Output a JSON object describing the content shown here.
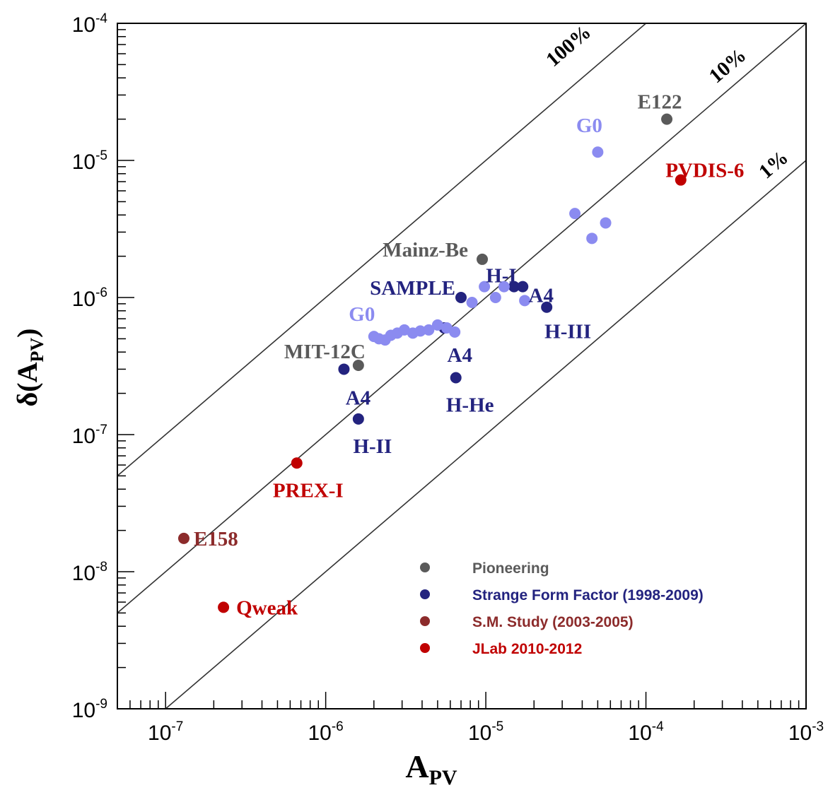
{
  "chart_data": {
    "type": "scatter",
    "xlabel": "A",
    "xlabel_sub": "PV",
    "ylabel": "δ(A",
    "ylabel_sub": "PV",
    "ylabel_close": ")",
    "x_scale": "log",
    "y_scale": "log",
    "xlim": [
      5e-08,
      0.001
    ],
    "ylim": [
      1e-09,
      0.0001
    ],
    "x_ticks": [
      {
        "base": "10",
        "exp": "-7",
        "value": 1e-07
      },
      {
        "base": "10",
        "exp": "-6",
        "value": 1e-06
      },
      {
        "base": "10",
        "exp": "-5",
        "value": 1e-05
      },
      {
        "base": "10",
        "exp": "-4",
        "value": 0.0001
      },
      {
        "base": "10",
        "exp": "-3",
        "value": 0.001
      }
    ],
    "y_ticks": [
      {
        "base": "10",
        "exp": "-9",
        "value": 1e-09
      },
      {
        "base": "10",
        "exp": "-8",
        "value": 1e-08
      },
      {
        "base": "10",
        "exp": "-7",
        "value": 1e-07
      },
      {
        "base": "10",
        "exp": "-6",
        "value": 1e-06
      },
      {
        "base": "10",
        "exp": "-5",
        "value": 1e-05
      },
      {
        "base": "10",
        "exp": "-4",
        "value": 0.0001
      }
    ],
    "grid": false,
    "legend_position": "bottom-right",
    "reference_lines": [
      {
        "label": "100%",
        "ratio": 1.0
      },
      {
        "label": "10%",
        "ratio": 0.1
      },
      {
        "label": "1%",
        "ratio": 0.01
      }
    ],
    "series": [
      {
        "name": "Pioneering",
        "color": "#5a5a5a",
        "points": [
          {
            "x": 0.000135,
            "y": 2e-05,
            "label": "E122"
          },
          {
            "x": 9.5e-06,
            "y": 1.9e-06,
            "label": "Mainz-Be"
          },
          {
            "x": 1.6e-06,
            "y": 3.2e-07,
            "label": "MIT-12C"
          }
        ]
      },
      {
        "name": "Strange Form Factor (1998-2009)",
        "color": "#23237f",
        "points": [
          {
            "x": 7e-06,
            "y": 1e-06,
            "label": "SAMPLE"
          },
          {
            "x": 1.5e-05,
            "y": 1.2e-06,
            "label": "H-I"
          },
          {
            "x": 1.7e-05,
            "y": 1.2e-06,
            "label": "A4"
          },
          {
            "x": 2.4e-05,
            "y": 8.5e-07,
            "label": "H-III"
          },
          {
            "x": 5.5e-06,
            "y": 6e-07,
            "label": "A4"
          },
          {
            "x": 1.3e-06,
            "y": 3e-07,
            "label": "A4"
          },
          {
            "x": 6.5e-06,
            "y": 2.6e-07,
            "label": "H-He"
          },
          {
            "x": 1.6e-06,
            "y": 1.3e-07,
            "label": "H-II"
          }
        ]
      },
      {
        "name": "G0",
        "color": "#8b8bf0",
        "points": [
          {
            "x": 5e-05,
            "y": 1.15e-05,
            "label": "G0"
          },
          {
            "x": 3.6e-05,
            "y": 4.1e-06
          },
          {
            "x": 5.6e-05,
            "y": 3.5e-06
          },
          {
            "x": 4.6e-05,
            "y": 2.7e-06
          },
          {
            "x": 9.8e-06,
            "y": 1.2e-06
          },
          {
            "x": 1.3e-05,
            "y": 1.2e-06
          },
          {
            "x": 1.15e-05,
            "y": 1e-06
          },
          {
            "x": 1.75e-05,
            "y": 9.5e-07
          },
          {
            "x": 8.2e-06,
            "y": 9.2e-07
          },
          {
            "x": 2e-06,
            "y": 5.2e-07,
            "label": "G0"
          },
          {
            "x": 2.15e-06,
            "y": 5e-07
          },
          {
            "x": 2.35e-06,
            "y": 4.9e-07
          },
          {
            "x": 2.55e-06,
            "y": 5.3e-07
          },
          {
            "x": 2.8e-06,
            "y": 5.5e-07
          },
          {
            "x": 3.1e-06,
            "y": 5.8e-07
          },
          {
            "x": 3.5e-06,
            "y": 5.5e-07
          },
          {
            "x": 3.9e-06,
            "y": 5.7e-07
          },
          {
            "x": 4.4e-06,
            "y": 5.8e-07
          },
          {
            "x": 5e-06,
            "y": 6.3e-07
          },
          {
            "x": 5.7e-06,
            "y": 6e-07
          },
          {
            "x": 6.4e-06,
            "y": 5.6e-07
          }
        ]
      },
      {
        "name": "S.M. Study (2003-2005)",
        "color": "#8c2b2b",
        "points": [
          {
            "x": 1.3e-07,
            "y": 1.75e-08,
            "label": "E158"
          }
        ]
      },
      {
        "name": "JLab 2010-2012",
        "color": "#c00000",
        "points": [
          {
            "x": 0.000165,
            "y": 7.2e-06,
            "label": "PVDIS-6"
          },
          {
            "x": 6.6e-07,
            "y": 6.2e-08,
            "label": "PREX-I"
          },
          {
            "x": 2.3e-07,
            "y": 5.5e-09,
            "label": "Qweak"
          }
        ]
      }
    ],
    "legend": [
      {
        "label": "Pioneering",
        "color": "#5a5a5a"
      },
      {
        "label": "Strange Form Factor (1998-2009)",
        "color": "#23237f"
      },
      {
        "label": "S.M. Study (2003-2005)",
        "color": "#8c2b2b"
      },
      {
        "label": "JLab 2010-2012",
        "color": "#c00000"
      }
    ]
  }
}
